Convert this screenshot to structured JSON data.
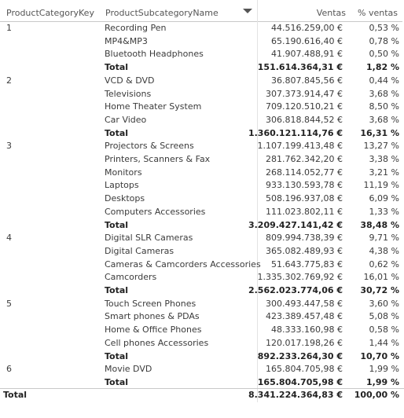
{
  "headers": {
    "key": "ProductCategoryKey",
    "subcategory": "ProductSubcategoryName",
    "ventas": "Ventas",
    "pct": "% ventas"
  },
  "rows": [
    {
      "kind": "item",
      "key": "1",
      "sub": "Recording Pen",
      "ventas": "44.516.259,00 €",
      "pct": "0,53 %"
    },
    {
      "kind": "item",
      "key": "",
      "sub": "MP4&MP3",
      "ventas": "65.190.616,40 €",
      "pct": "0,78 %"
    },
    {
      "kind": "item",
      "key": "",
      "sub": "Bluetooth Headphones",
      "ventas": "41.907.488,91 €",
      "pct": "0,50 %"
    },
    {
      "kind": "sub",
      "key": "",
      "sub": "Total",
      "ventas": "151.614.364,31 €",
      "pct": "1,82 %"
    },
    {
      "kind": "item",
      "key": "2",
      "sub": "VCD & DVD",
      "ventas": "36.807.845,56 €",
      "pct": "0,44 %"
    },
    {
      "kind": "item",
      "key": "",
      "sub": "Televisions",
      "ventas": "307.373.914,47 €",
      "pct": "3,68 %"
    },
    {
      "kind": "item",
      "key": "",
      "sub": "Home Theater System",
      "ventas": "709.120.510,21 €",
      "pct": "8,50 %"
    },
    {
      "kind": "item",
      "key": "",
      "sub": "Car Video",
      "ventas": "306.818.844,52 €",
      "pct": "3,68 %"
    },
    {
      "kind": "sub",
      "key": "",
      "sub": "Total",
      "ventas": "1.360.121.114,76 €",
      "pct": "16,31 %"
    },
    {
      "kind": "item",
      "key": "3",
      "sub": "Projectors & Screens",
      "ventas": "1.107.199.413,48 €",
      "pct": "13,27 %"
    },
    {
      "kind": "item",
      "key": "",
      "sub": "Printers, Scanners & Fax",
      "ventas": "281.762.342,20 €",
      "pct": "3,38 %"
    },
    {
      "kind": "item",
      "key": "",
      "sub": "Monitors",
      "ventas": "268.114.052,77 €",
      "pct": "3,21 %"
    },
    {
      "kind": "item",
      "key": "",
      "sub": "Laptops",
      "ventas": "933.130.593,78 €",
      "pct": "11,19 %"
    },
    {
      "kind": "item",
      "key": "",
      "sub": "Desktops",
      "ventas": "508.196.937,08 €",
      "pct": "6,09 %"
    },
    {
      "kind": "item",
      "key": "",
      "sub": "Computers Accessories",
      "ventas": "111.023.802,11 €",
      "pct": "1,33 %"
    },
    {
      "kind": "sub",
      "key": "",
      "sub": "Total",
      "ventas": "3.209.427.141,42 €",
      "pct": "38,48 %"
    },
    {
      "kind": "item",
      "key": "4",
      "sub": "Digital SLR Cameras",
      "ventas": "809.994.738,39 €",
      "pct": "9,71 %"
    },
    {
      "kind": "item",
      "key": "",
      "sub": "Digital Cameras",
      "ventas": "365.082.489,93 €",
      "pct": "4,38 %"
    },
    {
      "kind": "item",
      "key": "",
      "sub": "Cameras & Camcorders Accessories",
      "ventas": "51.643.775,83 €",
      "pct": "0,62 %"
    },
    {
      "kind": "item",
      "key": "",
      "sub": "Camcorders",
      "ventas": "1.335.302.769,92 €",
      "pct": "16,01 %"
    },
    {
      "kind": "sub",
      "key": "",
      "sub": "Total",
      "ventas": "2.562.023.774,06 €",
      "pct": "30,72 %"
    },
    {
      "kind": "item",
      "key": "5",
      "sub": "Touch Screen Phones",
      "ventas": "300.493.447,58 €",
      "pct": "3,60 %"
    },
    {
      "kind": "item",
      "key": "",
      "sub": "Smart phones & PDAs",
      "ventas": "423.389.457,48 €",
      "pct": "5,08 %"
    },
    {
      "kind": "item",
      "key": "",
      "sub": "Home & Office Phones",
      "ventas": "48.333.160,98 €",
      "pct": "0,58 %"
    },
    {
      "kind": "item",
      "key": "",
      "sub": "Cell phones Accessories",
      "ventas": "120.017.198,26 €",
      "pct": "1,44 %"
    },
    {
      "kind": "sub",
      "key": "",
      "sub": "Total",
      "ventas": "892.233.264,30 €",
      "pct": "10,70 %"
    },
    {
      "kind": "item",
      "key": "6",
      "sub": "Movie DVD",
      "ventas": "165.804.705,98 €",
      "pct": "1,99 %"
    },
    {
      "kind": "sub",
      "key": "",
      "sub": "Total",
      "ventas": "165.804.705,98 €",
      "pct": "1,99 %"
    }
  ],
  "grand_total": {
    "label": "Total",
    "ventas": "8.341.224.364,83 €",
    "pct": "100,00 %"
  }
}
